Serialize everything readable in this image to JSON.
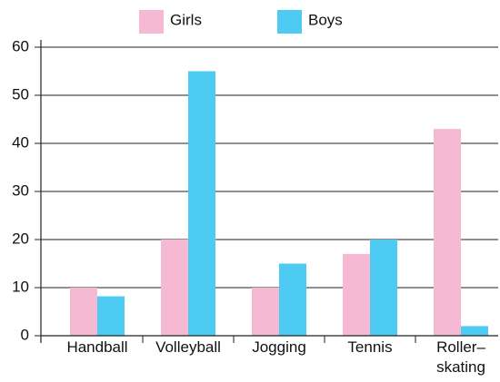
{
  "chart_data": {
    "type": "bar",
    "categories": [
      "Handball",
      "Volleyball",
      "Jogging",
      "Tennis",
      "Roller–\nskating"
    ],
    "series": [
      {
        "name": "Girls",
        "color": "#f5b9d3",
        "values": [
          10,
          20,
          10,
          17,
          43
        ]
      },
      {
        "name": "Boys",
        "color": "#4dcbf2",
        "values": [
          8.2,
          55,
          15,
          20,
          2
        ]
      }
    ],
    "ylim": [
      0,
      60
    ],
    "yticks": [
      0,
      10,
      20,
      30,
      40,
      50,
      60
    ],
    "grid": true,
    "legend": "top"
  }
}
